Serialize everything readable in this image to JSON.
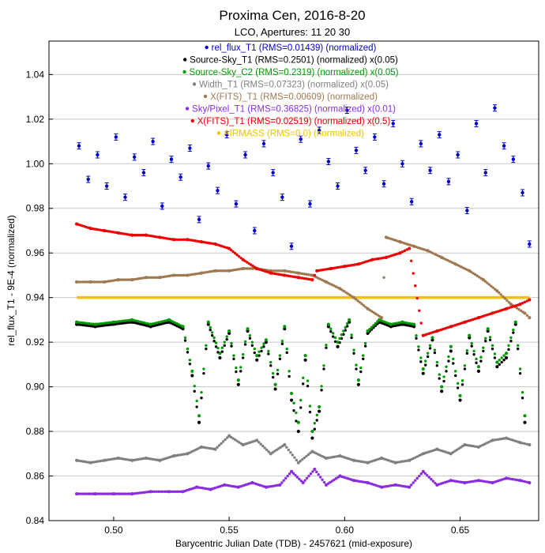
{
  "chart_data": {
    "type": "scatter",
    "title": "Proxima Cen, 2016-8-20",
    "subtitle": "LCO, Apertures: 11 20 30",
    "xlabel": "Barycentric Julian Date (TDB) - 2457621 (mid-exposure)",
    "ylabel": "rel_flux_T1 - 9E-4 (normalized)",
    "xlim": [
      0.472,
      0.684
    ],
    "ylim": [
      0.84,
      1.055
    ],
    "xticks": [
      0.5,
      0.55,
      0.6,
      0.65
    ],
    "xtick_labels": [
      "0.50",
      "0.55",
      "0.60",
      "0.65"
    ],
    "yticks": [
      0.84,
      0.86,
      0.88,
      0.9,
      0.92,
      0.94,
      0.96,
      0.98,
      1.0,
      1.02,
      1.04
    ],
    "ytick_labels": [
      "0.84",
      "0.86",
      "0.88",
      "0.90",
      "0.92",
      "0.94",
      "0.96",
      "0.98",
      "1.00",
      "1.02",
      "1.04"
    ],
    "grid": "horizontal",
    "legend_position": "top-center",
    "series": [
      {
        "name": "rel_flux_T1 (RMS=0.01439) (normalized)",
        "color": "#0000cc",
        "marker": "errorbar",
        "x": [
          0.485,
          0.489,
          0.493,
          0.497,
          0.501,
          0.505,
          0.509,
          0.513,
          0.517,
          0.521,
          0.525,
          0.529,
          0.533,
          0.537,
          0.541,
          0.545,
          0.549,
          0.553,
          0.557,
          0.561,
          0.565,
          0.569,
          0.573,
          0.577,
          0.581,
          0.585,
          0.589,
          0.593,
          0.597,
          0.601,
          0.605,
          0.609,
          0.613,
          0.617,
          0.621,
          0.625,
          0.629,
          0.633,
          0.637,
          0.641,
          0.645,
          0.649,
          0.653,
          0.657,
          0.661,
          0.665,
          0.669,
          0.673,
          0.677,
          0.68
        ],
        "y": [
          1.008,
          0.993,
          1.004,
          0.99,
          1.012,
          0.985,
          1.003,
          0.996,
          1.01,
          0.981,
          1.002,
          0.994,
          1.007,
          0.975,
          0.999,
          0.988,
          1.013,
          0.982,
          1.004,
          0.97,
          1.009,
          0.996,
          0.985,
          0.963,
          1.011,
          0.982,
          1.015,
          1.001,
          0.99,
          1.024,
          1.006,
          0.997,
          1.012,
          0.991,
          1.018,
          1.0,
          0.983,
          1.009,
          0.997,
          1.013,
          0.992,
          1.004,
          0.979,
          1.018,
          0.996,
          1.025,
          1.008,
          1.002,
          0.987,
          0.964
        ]
      },
      {
        "name": "Source-Sky_T1 (RMS=0.2501) (normalized) x(0.05)",
        "color": "#000000",
        "marker": "dot",
        "x": [
          0.484,
          0.492,
          0.5,
          0.508,
          0.516,
          0.524,
          0.53,
          0.534,
          0.537,
          0.541,
          0.546,
          0.55,
          0.554,
          0.558,
          0.562,
          0.566,
          0.57,
          0.574,
          0.577,
          0.58,
          0.583,
          0.586,
          0.589,
          0.593,
          0.597,
          0.602,
          0.606,
          0.61,
          0.615,
          0.62,
          0.625,
          0.63,
          0.634,
          0.638,
          0.642,
          0.646,
          0.65,
          0.654,
          0.658,
          0.662,
          0.666,
          0.67,
          0.674,
          0.678
        ],
        "y": [
          0.928,
          0.927,
          0.928,
          0.929,
          0.927,
          0.929,
          0.926,
          0.905,
          0.884,
          0.928,
          0.913,
          0.924,
          0.901,
          0.925,
          0.912,
          0.92,
          0.899,
          0.926,
          0.894,
          0.88,
          0.912,
          0.877,
          0.889,
          0.927,
          0.918,
          0.929,
          0.901,
          0.924,
          0.929,
          0.927,
          0.928,
          0.927,
          0.906,
          0.921,
          0.898,
          0.916,
          0.894,
          0.922,
          0.907,
          0.925,
          0.909,
          0.913,
          0.928,
          0.884
        ]
      },
      {
        "name": "Source-Sky_C2 (RMS=0.2319) (normalized) x(0.05)",
        "color": "#009900",
        "marker": "dot",
        "x": [
          0.484,
          0.492,
          0.5,
          0.508,
          0.516,
          0.524,
          0.53,
          0.534,
          0.537,
          0.541,
          0.546,
          0.55,
          0.554,
          0.558,
          0.562,
          0.566,
          0.57,
          0.574,
          0.577,
          0.58,
          0.583,
          0.586,
          0.589,
          0.593,
          0.597,
          0.602,
          0.606,
          0.61,
          0.615,
          0.62,
          0.625,
          0.63,
          0.634,
          0.638,
          0.642,
          0.646,
          0.65,
          0.654,
          0.658,
          0.662,
          0.666,
          0.67,
          0.674,
          0.678
        ],
        "y": [
          0.929,
          0.928,
          0.929,
          0.93,
          0.928,
          0.93,
          0.927,
          0.907,
          0.887,
          0.929,
          0.915,
          0.925,
          0.903,
          0.926,
          0.914,
          0.921,
          0.901,
          0.927,
          0.897,
          0.884,
          0.914,
          0.88,
          0.891,
          0.928,
          0.92,
          0.93,
          0.903,
          0.925,
          0.93,
          0.928,
          0.929,
          0.928,
          0.908,
          0.922,
          0.9,
          0.918,
          0.896,
          0.923,
          0.909,
          0.926,
          0.911,
          0.915,
          0.929,
          0.887
        ]
      },
      {
        "name": "Width_T1 (RMS=0.07323) (normalized) x(0.05)",
        "color": "#808080",
        "marker": "dot",
        "x": [
          0.484,
          0.49,
          0.496,
          0.502,
          0.508,
          0.514,
          0.52,
          0.526,
          0.532,
          0.538,
          0.544,
          0.55,
          0.556,
          0.562,
          0.568,
          0.574,
          0.58,
          0.586,
          0.592,
          0.598,
          0.604,
          0.61,
          0.616,
          0.622,
          0.628,
          0.634,
          0.64,
          0.646,
          0.652,
          0.658,
          0.664,
          0.67,
          0.676,
          0.68
        ],
        "y": [
          0.867,
          0.866,
          0.867,
          0.868,
          0.867,
          0.868,
          0.867,
          0.869,
          0.87,
          0.873,
          0.872,
          0.878,
          0.874,
          0.876,
          0.87,
          0.874,
          0.866,
          0.871,
          0.868,
          0.869,
          0.867,
          0.866,
          0.868,
          0.866,
          0.867,
          0.87,
          0.872,
          0.87,
          0.874,
          0.873,
          0.876,
          0.877,
          0.875,
          0.874
        ]
      },
      {
        "name": "X(FITS)_T1 (RMS=0.00609) (normalized)",
        "color": "#a07850",
        "marker": "dot",
        "x": [
          0.484,
          0.49,
          0.496,
          0.502,
          0.508,
          0.514,
          0.52,
          0.526,
          0.532,
          0.538,
          0.544,
          0.55,
          0.556,
          0.562,
          0.568,
          0.574,
          0.58,
          0.586,
          0.592,
          0.598,
          0.604,
          0.61,
          0.616,
          0.618,
          0.624,
          0.63,
          0.636,
          0.642,
          0.648,
          0.654,
          0.66,
          0.666,
          0.672,
          0.678,
          0.68
        ],
        "y": [
          0.947,
          0.947,
          0.947,
          0.948,
          0.948,
          0.949,
          0.949,
          0.95,
          0.95,
          0.951,
          0.952,
          0.952,
          0.953,
          0.953,
          0.952,
          0.952,
          0.951,
          0.95,
          0.947,
          0.944,
          0.94,
          0.935,
          0.931,
          0.967,
          0.965,
          0.963,
          0.961,
          0.958,
          0.955,
          0.952,
          0.948,
          0.943,
          0.937,
          0.933,
          0.931
        ]
      },
      {
        "name": "Sky/Pixel_T1 (RMS=0.36825) (normalized) x(0.01)",
        "color": "#8a2be2",
        "marker": "dot",
        "x": [
          0.484,
          0.492,
          0.5,
          0.508,
          0.516,
          0.524,
          0.53,
          0.536,
          0.542,
          0.548,
          0.554,
          0.56,
          0.566,
          0.572,
          0.577,
          0.582,
          0.587,
          0.592,
          0.598,
          0.604,
          0.61,
          0.616,
          0.622,
          0.628,
          0.634,
          0.64,
          0.646,
          0.652,
          0.658,
          0.664,
          0.67,
          0.676,
          0.68
        ],
        "y": [
          0.852,
          0.852,
          0.852,
          0.852,
          0.853,
          0.853,
          0.853,
          0.855,
          0.854,
          0.856,
          0.855,
          0.857,
          0.855,
          0.856,
          0.862,
          0.857,
          0.863,
          0.856,
          0.86,
          0.858,
          0.857,
          0.855,
          0.856,
          0.855,
          0.862,
          0.856,
          0.858,
          0.857,
          0.858,
          0.857,
          0.859,
          0.858,
          0.857
        ]
      },
      {
        "name": "X(FITS)_T1 (RMS=0.02519) (normalized) x(0.5)",
        "color": "#ee0000",
        "marker": "dot",
        "x": [
          0.484,
          0.49,
          0.496,
          0.502,
          0.508,
          0.514,
          0.52,
          0.526,
          0.532,
          0.538,
          0.544,
          0.55,
          0.556,
          0.562,
          0.568,
          0.574,
          0.58,
          0.586,
          0.588,
          0.594,
          0.6,
          0.606,
          0.612,
          0.618,
          0.624,
          0.628,
          0.634,
          0.64,
          0.646,
          0.652,
          0.658,
          0.664,
          0.67,
          0.676,
          0.68
        ],
        "y": [
          0.973,
          0.971,
          0.97,
          0.969,
          0.968,
          0.968,
          0.967,
          0.966,
          0.966,
          0.965,
          0.964,
          0.962,
          0.957,
          0.953,
          0.951,
          0.95,
          0.949,
          0.948,
          0.952,
          0.953,
          0.954,
          0.955,
          0.957,
          0.958,
          0.96,
          0.962,
          0.923,
          0.925,
          0.927,
          0.929,
          0.931,
          0.933,
          0.935,
          0.937,
          0.939
        ]
      },
      {
        "name": "AIRMASS (RMS=0.0) (normalized)",
        "color": "#f2c200",
        "marker": "dot",
        "x": [
          0.484,
          0.68
        ],
        "y": [
          0.94,
          0.94
        ]
      }
    ]
  }
}
